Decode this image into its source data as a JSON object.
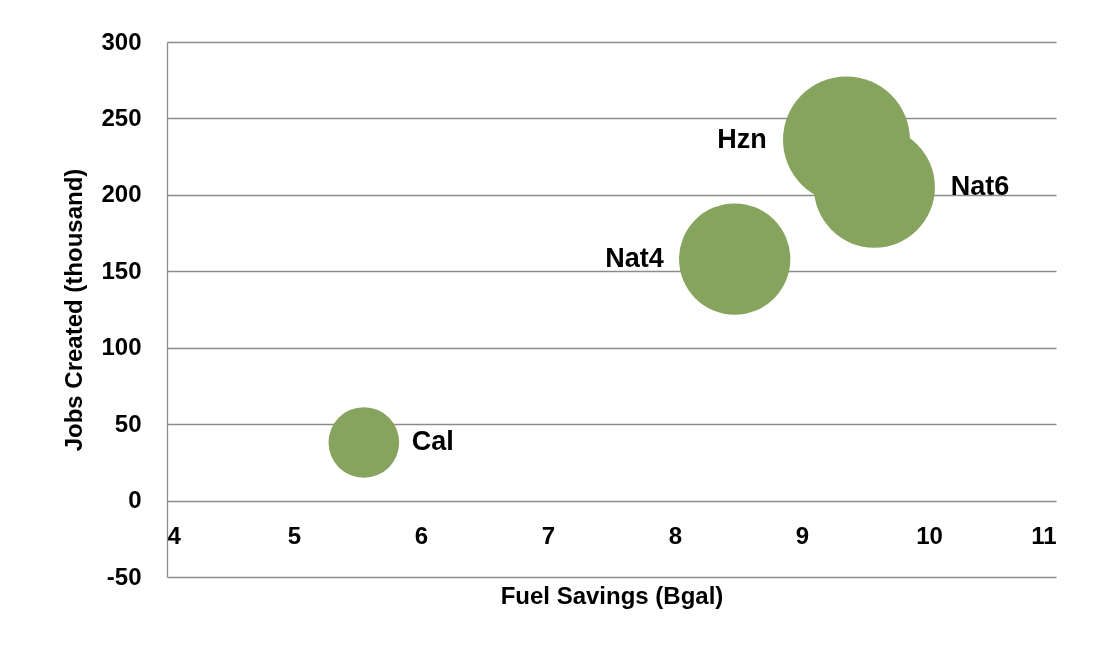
{
  "chart_data": {
    "type": "bubble",
    "xlabel": "Fuel Savings (Bgal)",
    "ylabel": "Jobs Created (thousand)",
    "xlim": [
      4,
      11
    ],
    "xticks": [
      4,
      5,
      6,
      7,
      8,
      9,
      10,
      11
    ],
    "ylim": [
      -50,
      300
    ],
    "yticks": [
      -50,
      0,
      50,
      100,
      150,
      200,
      250,
      300
    ],
    "grid": "y",
    "series": [
      {
        "name": "Cal",
        "color": "#86a45e",
        "x": [
          5.55
        ],
        "values": [
          38
        ],
        "sizes": [
          0.31
        ]
      },
      {
        "name": "Nat4",
        "color": "#86a45e",
        "x": [
          8.47
        ],
        "values": [
          158
        ],
        "sizes": [
          0.77
        ]
      },
      {
        "name": "Nat6",
        "color": "#86a45e",
        "x": [
          9.57
        ],
        "values": [
          205
        ],
        "sizes": [
          0.91
        ]
      },
      {
        "name": "Hzn",
        "color": "#86a45e",
        "x": [
          9.35
        ],
        "values": [
          236
        ],
        "sizes": [
          1
        ]
      }
    ]
  }
}
